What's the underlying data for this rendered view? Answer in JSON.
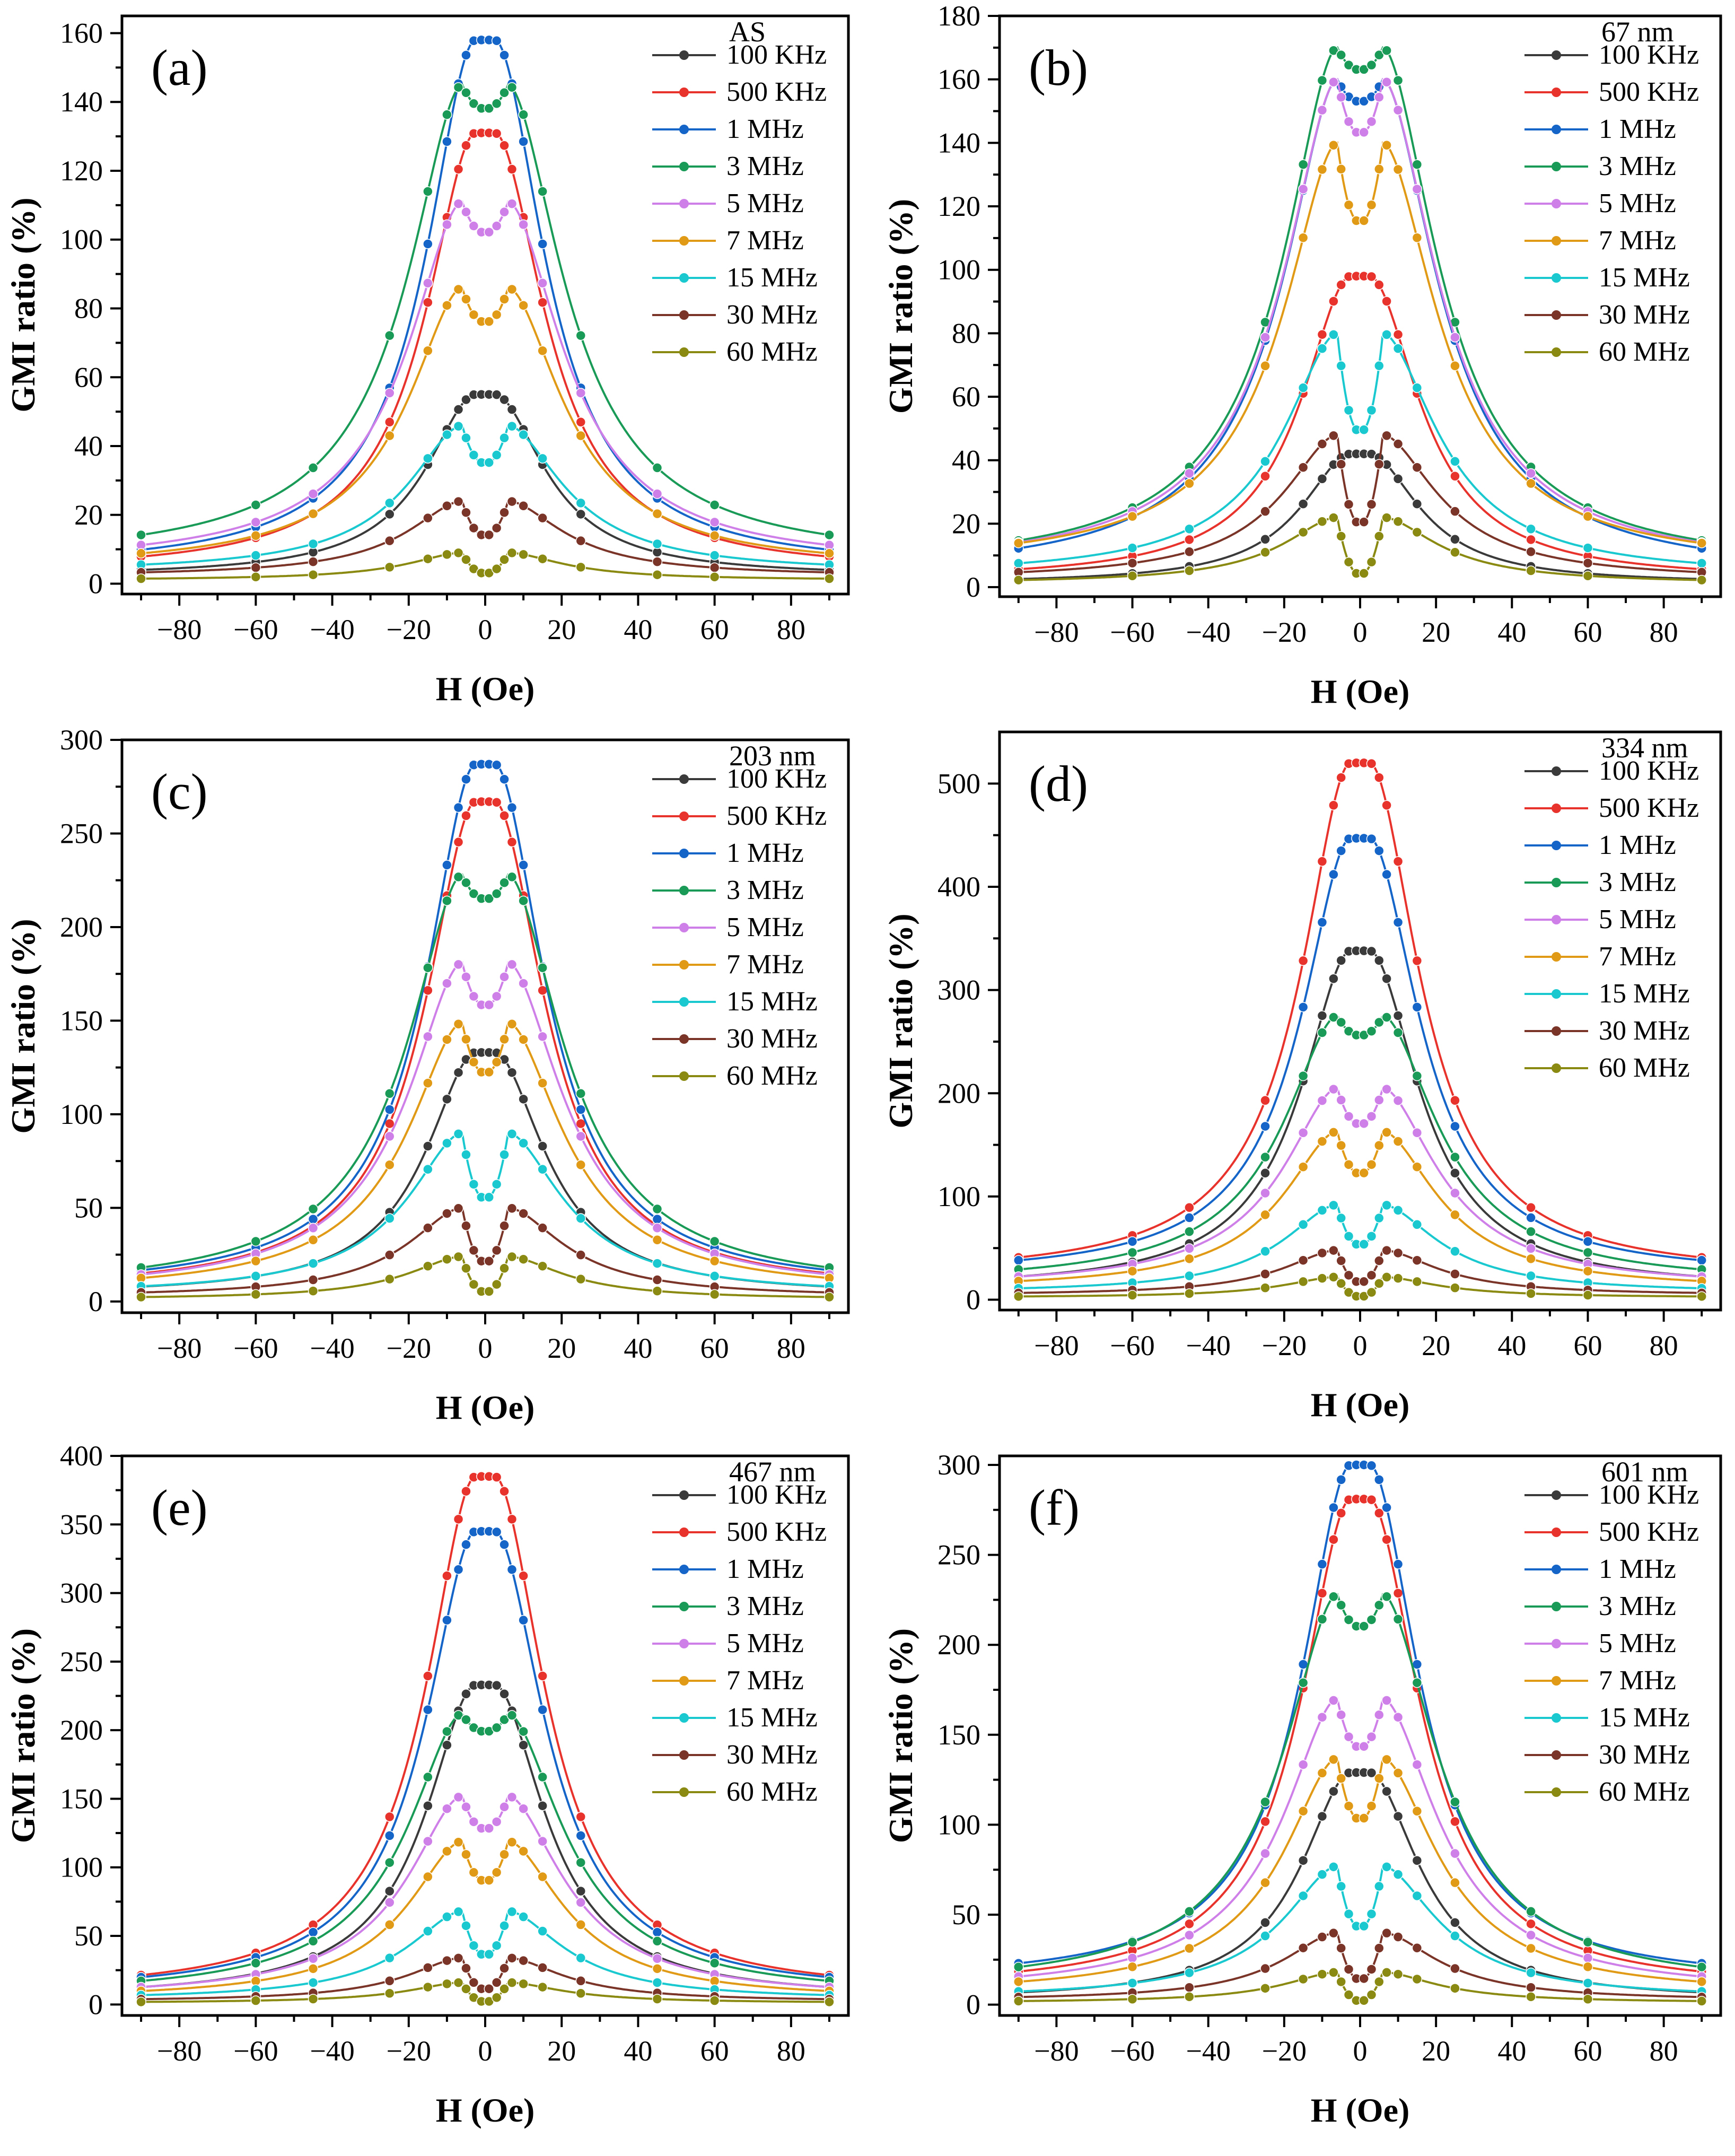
{
  "figure": {
    "series_colors": {
      "100 KHz": "#3a3a3a",
      "500 KHz": "#e8332c",
      "1 MHz": "#1565c8",
      "3 MHz": "#1a9a57",
      "5 MHz": "#cf7fe8",
      "7 MHz": "#e09a16",
      "15 MHz": "#1ac9cf",
      "30 MHz": "#7a3428",
      "60 MHz": "#8a8a12"
    },
    "x_ticks": [
      -80,
      -60,
      -40,
      -20,
      0,
      20,
      40,
      60,
      80
    ]
  },
  "chart_data": [
    {
      "type": "line",
      "panel_label": "(a)",
      "legend_title": "AS",
      "xlabel": "H (Oe)",
      "ylabel": "GMI ratio (%)",
      "xlim": [
        -95,
        95
      ],
      "ylim": [
        -3,
        165
      ],
      "yticks": [
        0,
        20,
        40,
        60,
        80,
        100,
        120,
        140,
        160
      ],
      "series": [
        {
          "name": "100 KHz",
          "kind": "single",
          "peak": 55,
          "tail": 2
        },
        {
          "name": "500 KHz",
          "kind": "single",
          "peak": 131,
          "tail": 3
        },
        {
          "name": "1 MHz",
          "kind": "single",
          "peak": 158,
          "tail": 4
        },
        {
          "name": "3 MHz",
          "kind": "double",
          "peak": 145,
          "dip": 138,
          "tail": 6
        },
        {
          "name": "5 MHz",
          "kind": "double",
          "peak": 111,
          "dip": 102,
          "tail": 5
        },
        {
          "name": "7 MHz",
          "kind": "double",
          "peak": 86,
          "dip": 76,
          "tail": 4
        },
        {
          "name": "15 MHz",
          "kind": "double",
          "peak": 46,
          "dip": 35,
          "tail": 3
        },
        {
          "name": "30 MHz",
          "kind": "double",
          "peak": 24,
          "dip": 14,
          "tail": 2
        },
        {
          "name": "60 MHz",
          "kind": "double",
          "peak": 9,
          "dip": 3,
          "tail": 1
        }
      ]
    },
    {
      "type": "line",
      "panel_label": "(b)",
      "legend_title": "67 nm",
      "xlabel": "H (Oe)",
      "ylabel": "GMI ratio (%)",
      "xlim": [
        -95,
        95
      ],
      "ylim": [
        -3,
        180
      ],
      "yticks": [
        0,
        20,
        40,
        60,
        80,
        100,
        120,
        140,
        160,
        180
      ],
      "series": [
        {
          "name": "100 KHz",
          "kind": "single",
          "peak": 42,
          "tail": 1
        },
        {
          "name": "500 KHz",
          "kind": "single",
          "peak": 98,
          "tail": 2
        },
        {
          "name": "1 MHz",
          "kind": "double",
          "peak": 160,
          "dip": 153,
          "tail": 3
        },
        {
          "name": "3 MHz",
          "kind": "double",
          "peak": 170,
          "dip": 163,
          "tail": 5
        },
        {
          "name": "5 MHz",
          "kind": "double",
          "peak": 160,
          "dip": 143,
          "tail": 5
        },
        {
          "name": "7 MHz",
          "kind": "double",
          "peak": 140,
          "dip": 115,
          "tail": 6
        },
        {
          "name": "15 MHz",
          "kind": "double",
          "peak": 80,
          "dip": 49,
          "tail": 3
        },
        {
          "name": "30 MHz",
          "kind": "double",
          "peak": 48,
          "dip": 20,
          "tail": 2
        },
        {
          "name": "60 MHz",
          "kind": "double",
          "peak": 22,
          "dip": 4,
          "tail": 1
        }
      ]
    },
    {
      "type": "line",
      "panel_label": "(c)",
      "legend_title": "203 nm",
      "xlabel": "H (Oe)",
      "ylabel": "GMI ratio (%)",
      "xlim": [
        -95,
        95
      ],
      "ylim": [
        -6,
        300
      ],
      "yticks": [
        0,
        50,
        100,
        150,
        200,
        250,
        300
      ],
      "series": [
        {
          "name": "100 KHz",
          "kind": "single",
          "peak": 133,
          "tail": 3
        },
        {
          "name": "500 KHz",
          "kind": "single",
          "peak": 267,
          "tail": 5
        },
        {
          "name": "1 MHz",
          "kind": "single",
          "peak": 287,
          "tail": 6
        },
        {
          "name": "3 MHz",
          "kind": "double",
          "peak": 228,
          "dip": 215,
          "tail": 5
        },
        {
          "name": "5 MHz",
          "kind": "double",
          "peak": 181,
          "dip": 158,
          "tail": 4
        },
        {
          "name": "7 MHz",
          "kind": "double",
          "peak": 149,
          "dip": 122,
          "tail": 4
        },
        {
          "name": "15 MHz",
          "kind": "double",
          "peak": 90,
          "dip": 55,
          "tail": 3
        },
        {
          "name": "30 MHz",
          "kind": "double",
          "peak": 50,
          "dip": 21,
          "tail": 2
        },
        {
          "name": "60 MHz",
          "kind": "double",
          "peak": 24,
          "dip": 5,
          "tail": 1
        }
      ]
    },
    {
      "type": "line",
      "panel_label": "(d)",
      "legend_title": "334 nm",
      "xlabel": "H (Oe)",
      "ylabel": "GMI ratio (%)",
      "xlim": [
        -95,
        95
      ],
      "ylim": [
        -10,
        550
      ],
      "yticks": [
        0,
        100,
        200,
        300,
        400,
        500
      ],
      "series": [
        {
          "name": "100 KHz",
          "kind": "single",
          "peak": 338,
          "tail": 10
        },
        {
          "name": "500 KHz",
          "kind": "single",
          "peak": 520,
          "tail": 22
        },
        {
          "name": "1 MHz",
          "kind": "single",
          "peak": 447,
          "tail": 22
        },
        {
          "name": "3 MHz",
          "kind": "double",
          "peak": 275,
          "dip": 256,
          "tail": 14
        },
        {
          "name": "5 MHz",
          "kind": "double",
          "peak": 205,
          "dip": 170,
          "tail": 11
        },
        {
          "name": "7 MHz",
          "kind": "double",
          "peak": 163,
          "dip": 122,
          "tail": 9
        },
        {
          "name": "15 MHz",
          "kind": "double",
          "peak": 92,
          "dip": 53,
          "tail": 6
        },
        {
          "name": "30 MHz",
          "kind": "double",
          "peak": 48,
          "dip": 17,
          "tail": 4
        },
        {
          "name": "60 MHz",
          "kind": "double",
          "peak": 22,
          "dip": 3,
          "tail": 2
        }
      ]
    },
    {
      "type": "line",
      "panel_label": "(e)",
      "legend_title": "467 nm",
      "xlabel": "H (Oe)",
      "ylabel": "GMI ratio (%)",
      "xlim": [
        -95,
        95
      ],
      "ylim": [
        -8,
        400
      ],
      "yticks": [
        0,
        50,
        100,
        150,
        200,
        250,
        300,
        350,
        400
      ],
      "series": [
        {
          "name": "100 KHz",
          "kind": "single",
          "peak": 233,
          "tail": 4
        },
        {
          "name": "500 KHz",
          "kind": "single",
          "peak": 385,
          "tail": 7
        },
        {
          "name": "1 MHz",
          "kind": "single",
          "peak": 345,
          "tail": 7
        },
        {
          "name": "3 MHz",
          "kind": "double",
          "peak": 212,
          "dip": 199,
          "tail": 5
        },
        {
          "name": "5 MHz",
          "kind": "double",
          "peak": 152,
          "dip": 128,
          "tail": 4
        },
        {
          "name": "7 MHz",
          "kind": "double",
          "peak": 119,
          "dip": 90,
          "tail": 3
        },
        {
          "name": "15 MHz",
          "kind": "double",
          "peak": 68,
          "dip": 36,
          "tail": 3
        },
        {
          "name": "30 MHz",
          "kind": "double",
          "peak": 34,
          "dip": 11,
          "tail": 2
        },
        {
          "name": "60 MHz",
          "kind": "double",
          "peak": 16,
          "dip": 2,
          "tail": 1
        }
      ]
    },
    {
      "type": "line",
      "panel_label": "(f)",
      "legend_title": "601 nm",
      "xlabel": "H (Oe)",
      "ylabel": "GMI ratio (%)",
      "xlim": [
        -95,
        95
      ],
      "ylim": [
        -6,
        305
      ],
      "yticks": [
        0,
        50,
        100,
        150,
        200,
        250,
        300
      ],
      "series": [
        {
          "name": "100 KHz",
          "kind": "single",
          "peak": 129,
          "tail": 2
        },
        {
          "name": "500 KHz",
          "kind": "single",
          "peak": 281,
          "tail": 8
        },
        {
          "name": "1 MHz",
          "kind": "single",
          "peak": 300,
          "tail": 12
        },
        {
          "name": "3 MHz",
          "kind": "double",
          "peak": 228,
          "dip": 210,
          "tail": 8
        },
        {
          "name": "5 MHz",
          "kind": "double",
          "peak": 170,
          "dip": 143,
          "tail": 6
        },
        {
          "name": "7 MHz",
          "kind": "double",
          "peak": 137,
          "dip": 103,
          "tail": 5
        },
        {
          "name": "15 MHz",
          "kind": "double",
          "peak": 77,
          "dip": 43,
          "tail": 3
        },
        {
          "name": "30 MHz",
          "kind": "double",
          "peak": 40,
          "dip": 14,
          "tail": 2
        },
        {
          "name": "60 MHz",
          "kind": "double",
          "peak": 18,
          "dip": 2,
          "tail": 1
        }
      ]
    }
  ]
}
